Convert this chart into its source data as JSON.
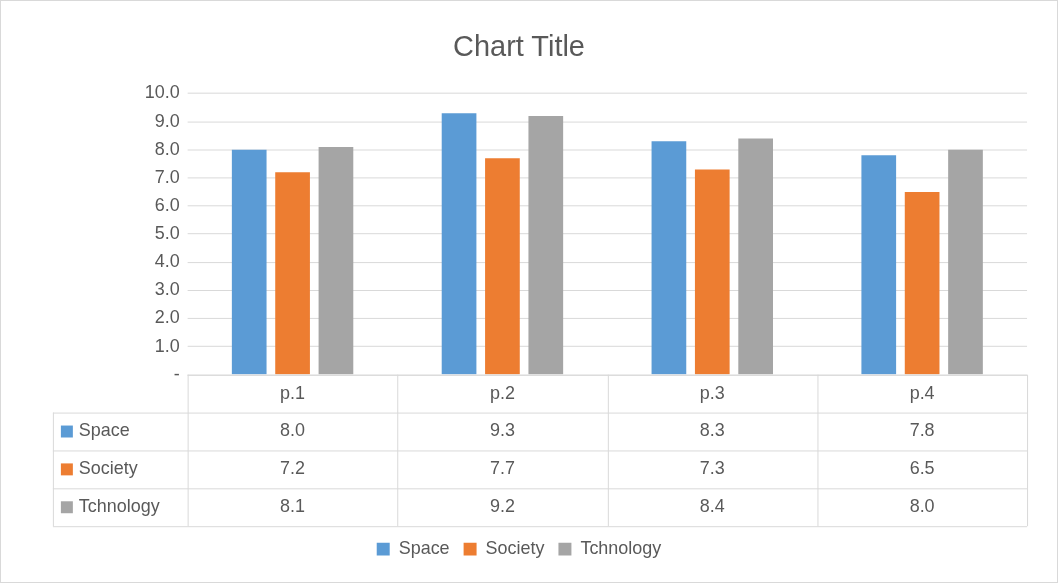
{
  "chart_data": {
    "type": "bar",
    "title": "Chart Title",
    "categories": [
      "p.1",
      "p.2",
      "p.3",
      "p.4"
    ],
    "series": [
      {
        "name": "Space",
        "color": "#5b9bd5",
        "values": [
          8.0,
          9.3,
          8.3,
          7.8
        ],
        "value_labels": [
          "8.0",
          "9.3",
          "8.3",
          "7.8"
        ]
      },
      {
        "name": "Society",
        "color": "#ed7d31",
        "values": [
          7.2,
          7.7,
          7.3,
          6.5
        ],
        "value_labels": [
          "7.2",
          "7.7",
          "7.3",
          "6.5"
        ]
      },
      {
        "name": "Tchnology",
        "color": "#a5a5a5",
        "values": [
          8.1,
          9.2,
          8.4,
          8.0
        ],
        "value_labels": [
          "8.1",
          "9.2",
          "8.4",
          "8.0"
        ]
      }
    ],
    "ylim": [
      0,
      10
    ],
    "yticks": [
      {
        "value": 0,
        "label": "-"
      },
      {
        "value": 1,
        "label": "1.0"
      },
      {
        "value": 2,
        "label": "2.0"
      },
      {
        "value": 3,
        "label": "3.0"
      },
      {
        "value": 4,
        "label": "4.0"
      },
      {
        "value": 5,
        "label": "5.0"
      },
      {
        "value": 6,
        "label": "6.0"
      },
      {
        "value": 7,
        "label": "7.0"
      },
      {
        "value": 8,
        "label": "8.0"
      },
      {
        "value": 9,
        "label": "9.0"
      },
      {
        "value": 10,
        "label": "10.0"
      }
    ],
    "grid": "y",
    "legend": "bottom"
  }
}
